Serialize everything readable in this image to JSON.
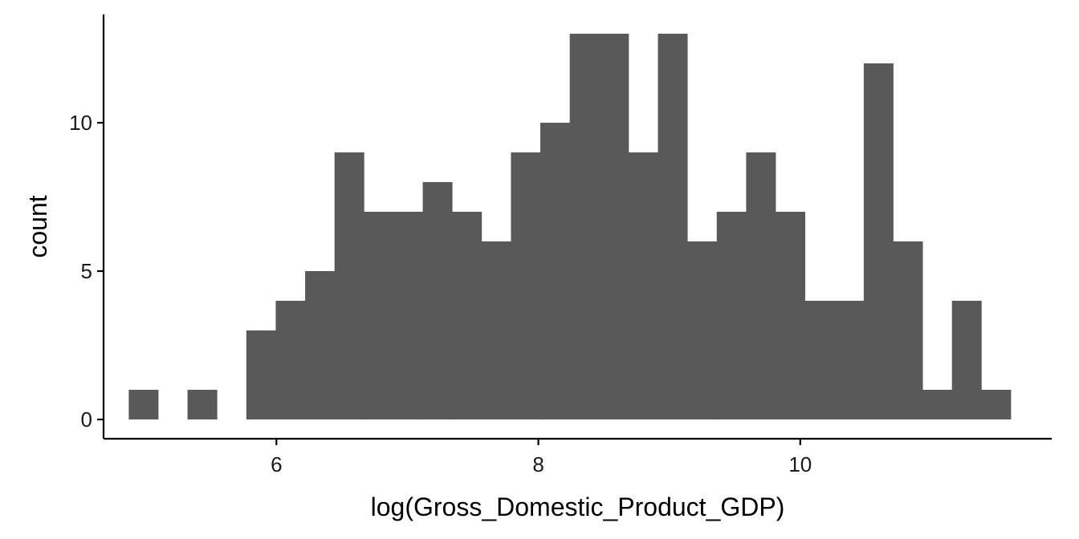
{
  "chart_data": {
    "type": "bar",
    "subtype": "histogram",
    "xlabel": "log(Gross_Domestic_Product_GDP)",
    "ylabel": "count",
    "xlim": [
      4.68,
      11.92
    ],
    "ylim": [
      -0.65,
      13.65
    ],
    "bin_width": 0.2245,
    "first_bin_start": 4.8722,
    "counts": [
      1,
      0,
      1,
      0,
      3,
      4,
      5,
      9,
      7,
      7,
      8,
      7,
      6,
      9,
      10,
      13,
      13,
      9,
      13,
      6,
      7,
      9,
      7,
      4,
      4,
      12,
      6,
      1,
      4,
      1
    ],
    "x_ticks": [
      {
        "value": 6,
        "label": "6"
      },
      {
        "value": 8,
        "label": "8"
      },
      {
        "value": 10,
        "label": "10"
      }
    ],
    "y_ticks": [
      {
        "value": 0,
        "label": "0"
      },
      {
        "value": 5,
        "label": "5"
      },
      {
        "value": 10,
        "label": "10"
      }
    ],
    "bar_color": "#595959",
    "grid": false,
    "legend": "none"
  }
}
